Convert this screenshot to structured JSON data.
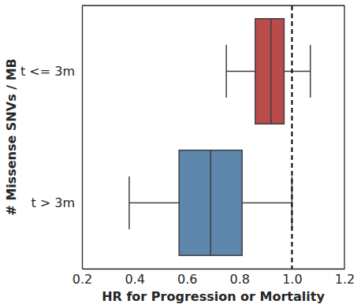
{
  "chart_data": {
    "type": "box",
    "orientation": "horizontal",
    "categories": [
      "t <= 3m",
      "t > 3m"
    ],
    "boxes": [
      {
        "whislo": 0.75,
        "q1": 0.86,
        "median": 0.92,
        "q3": 0.97,
        "whishi": 1.07
      },
      {
        "whislo": 0.38,
        "q1": 0.57,
        "median": 0.69,
        "q3": 0.81,
        "whishi": 1.0
      }
    ],
    "colors": [
      "#b94b4b",
      "#5f87ae"
    ],
    "xlabel": "HR for Progression or Mortality",
    "ylabel": "# Missense SNVs / MB",
    "xlim": [
      0.2,
      1.2
    ],
    "xticks": [
      0.2,
      0.4,
      0.6,
      0.8,
      {
        "value": 1,
        "label": "1.0"
      },
      1.2
    ],
    "reference_line": 1,
    "grid": false
  }
}
